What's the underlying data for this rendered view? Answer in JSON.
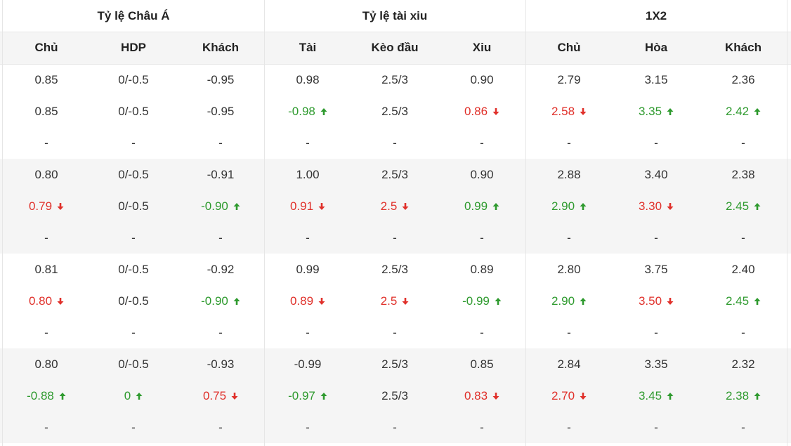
{
  "header": {
    "groups": [
      "Tỷ lệ Châu Á",
      "Tỷ lệ tài xiu",
      "1X2"
    ],
    "columns": [
      "Chủ",
      "HDP",
      "Khách",
      "Tài",
      "Kèo đầu",
      "Xiu",
      "Chủ",
      "Hòa",
      "Khách"
    ]
  },
  "table": {
    "rows": [
      [
        "0.85",
        "0/-0.5",
        "-0.95",
        "0.98",
        "2.5/3",
        "0.90",
        "2.79",
        "3.15",
        "2.36"
      ],
      [
        "0.85",
        "0/-0.5",
        "-0.95",
        {
          "text": "-0.98",
          "trend": "up"
        },
        "2.5/3",
        {
          "text": "0.86",
          "trend": "down"
        },
        {
          "text": "2.58",
          "trend": "down"
        },
        {
          "text": "3.35",
          "trend": "up"
        },
        {
          "text": "2.42",
          "trend": "up"
        }
      ],
      [
        "-",
        "-",
        "-",
        "-",
        "-",
        "-",
        "-",
        "-",
        "-"
      ],
      [
        "0.80",
        "0/-0.5",
        "-0.91",
        "1.00",
        "2.5/3",
        "0.90",
        "2.88",
        "3.40",
        "2.38"
      ],
      [
        {
          "text": "0.79",
          "trend": "down"
        },
        "0/-0.5",
        {
          "text": "-0.90",
          "trend": "up"
        },
        {
          "text": "0.91",
          "trend": "down"
        },
        {
          "text": "2.5",
          "trend": "down"
        },
        {
          "text": "0.99",
          "trend": "up"
        },
        {
          "text": "2.90",
          "trend": "up"
        },
        {
          "text": "3.30",
          "trend": "down"
        },
        {
          "text": "2.45",
          "trend": "up"
        }
      ],
      [
        "-",
        "-",
        "-",
        "-",
        "-",
        "-",
        "-",
        "-",
        "-"
      ],
      [
        "0.81",
        "0/-0.5",
        "-0.92",
        "0.99",
        "2.5/3",
        "0.89",
        "2.80",
        "3.75",
        "2.40"
      ],
      [
        {
          "text": "0.80",
          "trend": "down"
        },
        "0/-0.5",
        {
          "text": "-0.90",
          "trend": "up"
        },
        {
          "text": "0.89",
          "trend": "down"
        },
        {
          "text": "2.5",
          "trend": "down"
        },
        {
          "text": "-0.99",
          "trend": "up"
        },
        {
          "text": "2.90",
          "trend": "up"
        },
        {
          "text": "3.50",
          "trend": "down"
        },
        {
          "text": "2.45",
          "trend": "up"
        }
      ],
      [
        "-",
        "-",
        "-",
        "-",
        "-",
        "-",
        "-",
        "-",
        "-"
      ],
      [
        "0.80",
        "0/-0.5",
        "-0.93",
        "-0.99",
        "2.5/3",
        "0.85",
        "2.84",
        "3.35",
        "2.32"
      ],
      [
        {
          "text": "-0.88",
          "trend": "up"
        },
        {
          "text": "0",
          "trend": "up"
        },
        {
          "text": "0.75",
          "trend": "down"
        },
        {
          "text": "-0.97",
          "trend": "up"
        },
        "2.5/3",
        {
          "text": "0.83",
          "trend": "down"
        },
        {
          "text": "2.70",
          "trend": "down"
        },
        {
          "text": "3.45",
          "trend": "up"
        },
        {
          "text": "2.38",
          "trend": "up"
        }
      ],
      [
        "-",
        "-",
        "-",
        "-",
        "-",
        "-",
        "-",
        "-",
        "-"
      ]
    ]
  }
}
